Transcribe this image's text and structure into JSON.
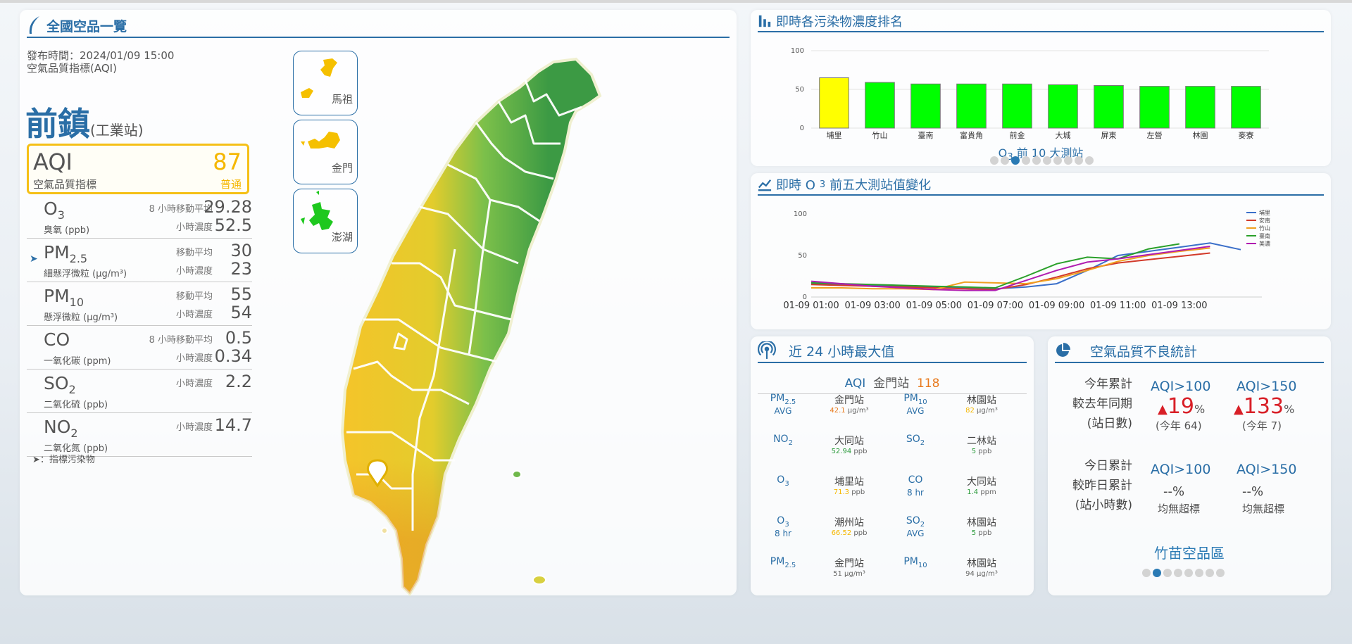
{
  "left": {
    "title": "全國空品一覽",
    "publish": "發布時間：2024/01/09 15:00",
    "index_name": "空氣品質指標(AQI)",
    "station": "前鎮",
    "station_type": "(工業站)",
    "aqi": {
      "label": "AQI",
      "sub": "空氣品質指標",
      "value": "87",
      "status": "普通"
    },
    "pollutants": [
      {
        "name": "O",
        "sub": "3",
        "desc": "臭氧 (ppb)",
        "l1": "8 小時移動平均",
        "v1": "29.28",
        "l2": "小時濃度",
        "v2": "52.5"
      },
      {
        "name": "PM",
        "sub": "2.5",
        "desc": "細懸浮微粒 (μg/m³)",
        "l1": "移動平均",
        "v1": "30",
        "l2": "小時濃度",
        "v2": "23"
      },
      {
        "name": "PM",
        "sub": "10",
        "desc": "懸浮微粒 (μg/m³)",
        "l1": "移動平均",
        "v1": "55",
        "l2": "小時濃度",
        "v2": "54"
      },
      {
        "name": "CO",
        "sub": "",
        "desc": "一氧化碳 (ppm)",
        "l1": "8 小時移動平均",
        "v1": "0.5",
        "l2": "小時濃度",
        "v2": "0.34"
      },
      {
        "name": "SO",
        "sub": "2",
        "desc": "二氧化硫 (ppb)",
        "l1": "小時濃度",
        "v1": "2.2",
        "l2": "",
        "v2": ""
      },
      {
        "name": "NO",
        "sub": "2",
        "desc": "二氧化氮 (ppb)",
        "l1": "小時濃度",
        "v1": "14.7",
        "l2": "",
        "v2": ""
      }
    ],
    "note": "➤：指標污染物",
    "islands": [
      "馬祖",
      "金門",
      "澎湖"
    ]
  },
  "rank": {
    "title": "即時各污染物濃度排名",
    "caption_prefix": "O",
    "caption_sub": "3",
    "caption_suffix": " 前 10 大測站",
    "dots": 10,
    "active_dot": 2
  },
  "trend": {
    "title_prefix": "即時 O",
    "title_sub": "3",
    "title_suffix": " 前五大測站值變化"
  },
  "max24": {
    "title": "近 24 小時最大值",
    "head_key": "AQI",
    "head_station": "金門站",
    "head_value": "118",
    "cells": [
      {
        "p": "PM",
        "psub": "2.5",
        "p2": "AVG",
        "st": "金門站",
        "v": "42.1",
        "unit": "μg/m³",
        "color": "#e8791c"
      },
      {
        "p": "PM",
        "psub": "10",
        "p2": "AVG",
        "st": "林園站",
        "v": "82",
        "unit": "μg/m³",
        "color": "#f5b700"
      },
      {
        "p": "NO",
        "psub": "2",
        "p2": "",
        "st": "大同站",
        "v": "52.94",
        "unit": "ppb",
        "color": "#2a9a3a"
      },
      {
        "p": "SO",
        "psub": "2",
        "p2": "",
        "st": "二林站",
        "v": "5",
        "unit": "ppb",
        "color": "#2a9a3a"
      },
      {
        "p": "O",
        "psub": "3",
        "p2": "",
        "st": "埔里站",
        "v": "71.3",
        "unit": "ppb",
        "color": "#f5b700"
      },
      {
        "p": "CO",
        "psub": "",
        "p2": "8 hr",
        "st": "大同站",
        "v": "1.4",
        "unit": "ppm",
        "color": "#2a9a3a"
      },
      {
        "p": "O",
        "psub": "3",
        "p2": "8 hr",
        "st": "潮州站",
        "v": "66.52",
        "unit": "ppb",
        "color": "#f5b700"
      },
      {
        "p": "SO",
        "psub": "2",
        "p2": "AVG",
        "st": "林園站",
        "v": "5",
        "unit": "ppb",
        "color": "#2a9a3a"
      },
      {
        "p": "PM",
        "psub": "2.5",
        "p2": "",
        "st": "金門站",
        "v": "51",
        "unit": "μg/m³",
        "color": "#666666"
      },
      {
        "p": "PM",
        "psub": "10",
        "p2": "",
        "st": "林園站",
        "v": "94",
        "unit": "μg/m³",
        "color": "#666666"
      }
    ]
  },
  "stats": {
    "title": "空氣品質不良統計",
    "year_l1": "今年累計",
    "year_l2": "較去年同期",
    "year_l3": "(站日數)",
    "h100": "AQI>100",
    "h150": "AQI>150",
    "year_v100": "19",
    "year_v150": "133",
    "pct": "%",
    "year_n100": "(今年 64)",
    "year_n150": "(今年 7)",
    "day_l1": "今日累計",
    "day_l2": "較昨日累計",
    "day_l3": "(站小時數)",
    "day_v100": "--%",
    "day_v150": "--%",
    "day_n100": "均無超標",
    "day_n150": "均無超標",
    "region": "竹苗空品區",
    "dots": 8,
    "active_dot": 1
  },
  "chart_data": [
    {
      "type": "bar",
      "categories": [
        "埔里",
        "竹山",
        "臺南",
        "富貴角",
        "前金",
        "大城",
        "屏東",
        "左營",
        "林園",
        "麥寮"
      ],
      "values": [
        65,
        59,
        57,
        57,
        57,
        56,
        55,
        54,
        54,
        54
      ],
      "colors": [
        "#ffff00",
        "#00ff00",
        "#00ff00",
        "#00ff00",
        "#00ff00",
        "#00ff00",
        "#00ff00",
        "#00ff00",
        "#00ff00",
        "#00ff00"
      ],
      "ylim": [
        0,
        100
      ],
      "yticks": [
        0,
        50,
        100
      ]
    },
    {
      "type": "line",
      "x": [
        "01-09 01:00",
        "01-09 02:00",
        "01-09 03:00",
        "01-09 04:00",
        "01-09 05:00",
        "01-09 06:00",
        "01-09 07:00",
        "01-09 08:00",
        "01-09 09:00",
        "01-09 10:00",
        "01-09 11:00",
        "01-09 12:00",
        "01-09 13:00",
        "01-09 14:00",
        "01-09 15:00"
      ],
      "xticks": [
        "01-09 01:00",
        "01-09 03:00",
        "01-09 05:00",
        "01-09 07:00",
        "01-09 09:00",
        "01-09 11:00",
        "01-09 13:00"
      ],
      "ylim": [
        0,
        100
      ],
      "yticks": [
        0,
        50,
        100
      ],
      "series": [
        {
          "name": "埔里",
          "color": "#3b6fc9",
          "values": [
            16,
            15,
            14,
            13,
            12,
            11,
            10,
            12,
            16,
            32,
            50,
            55,
            60,
            65,
            57
          ]
        },
        {
          "name": "安南",
          "color": "#d23a2a",
          "values": [
            15,
            14,
            13,
            12,
            11,
            10,
            9,
            15,
            24,
            34,
            41,
            45,
            49,
            53,
            null
          ]
        },
        {
          "name": "竹山",
          "color": "#f0a020",
          "values": [
            11,
            11,
            10,
            10,
            9,
            18,
            17,
            16,
            22,
            32,
            43,
            50,
            55,
            59,
            null
          ]
        },
        {
          "name": "臺南",
          "color": "#2aa02a",
          "values": [
            17,
            16,
            15,
            14,
            13,
            12,
            11,
            25,
            40,
            48,
            46,
            58,
            64,
            null,
            null
          ]
        },
        {
          "name": "美濃",
          "color": "#b01cb0",
          "values": [
            19,
            16,
            13,
            11,
            9,
            8,
            8,
            20,
            32,
            42,
            46,
            51,
            56,
            61,
            null
          ]
        }
      ]
    }
  ]
}
